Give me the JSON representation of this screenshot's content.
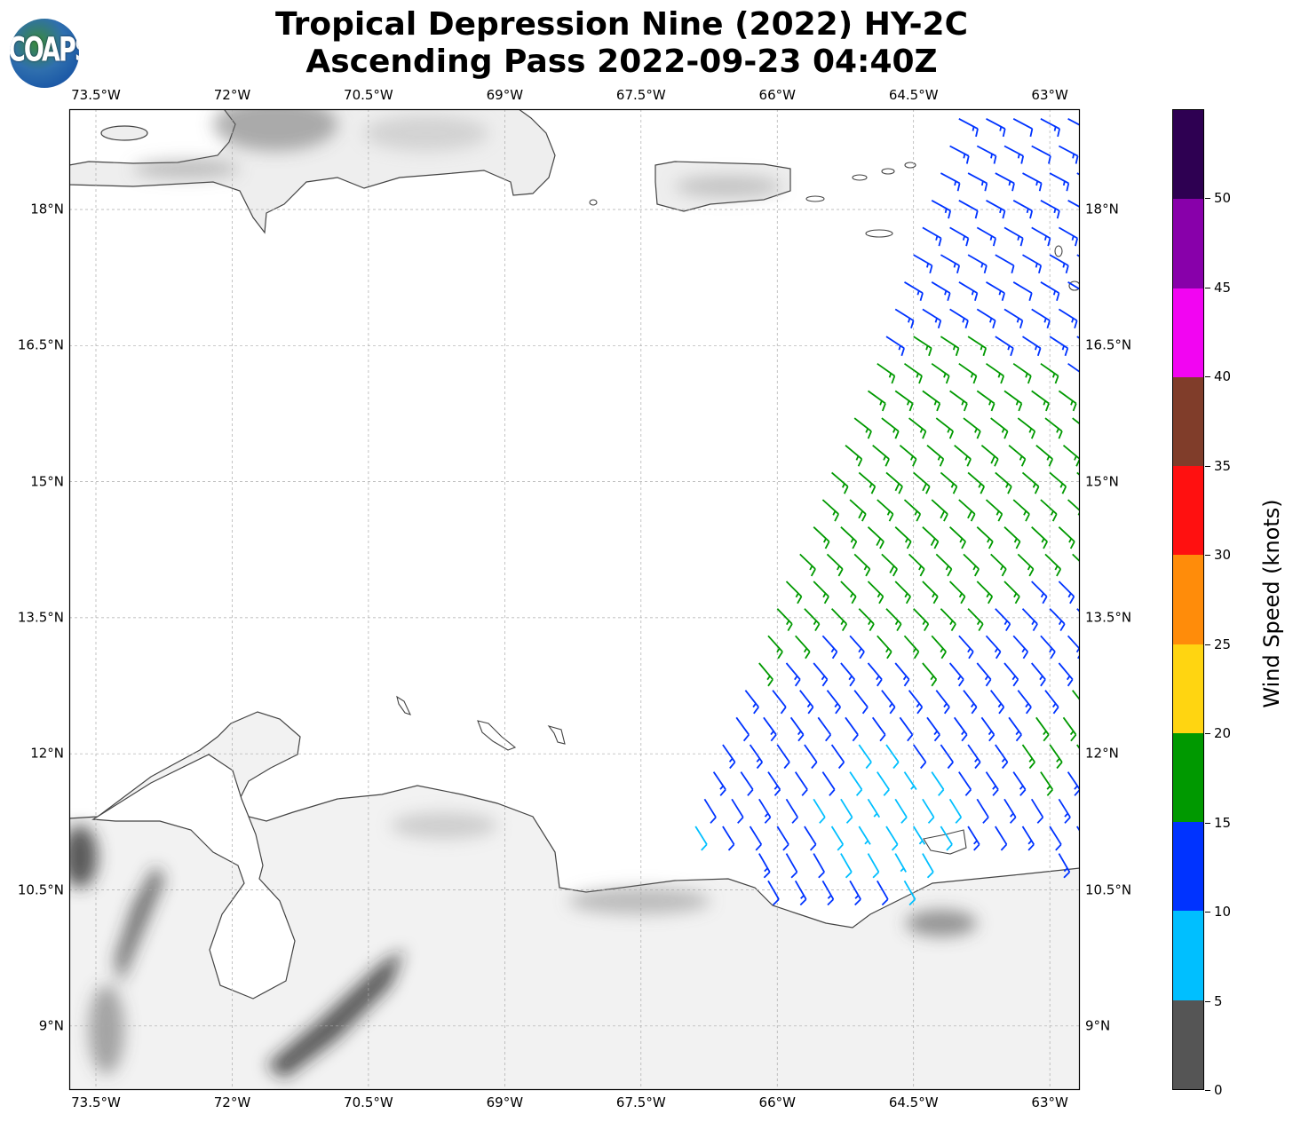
{
  "title": {
    "line1": "Tropical Depression Nine (2022) HY-2C",
    "line2": "Ascending Pass 2022-09-23 04:40Z"
  },
  "logo": {
    "text": "COAPS"
  },
  "map": {
    "extent_lon": [
      -73.79,
      -62.53
    ],
    "extent_lat": [
      8.28,
      19.1
    ],
    "lon_ticks": [
      {
        "value": -73.5,
        "label": "73.5°W"
      },
      {
        "value": -72,
        "label": "72°W"
      },
      {
        "value": -70.5,
        "label": "70.5°W"
      },
      {
        "value": -69,
        "label": "69°W"
      },
      {
        "value": -67.5,
        "label": "67.5°W"
      },
      {
        "value": -66,
        "label": "66°W"
      },
      {
        "value": -64.5,
        "label": "64.5°W"
      },
      {
        "value": -63,
        "label": "63°W"
      }
    ],
    "lat_ticks": [
      {
        "value": 18,
        "label": "18°N"
      },
      {
        "value": 16.5,
        "label": "16.5°N"
      },
      {
        "value": 15,
        "label": "15°N"
      },
      {
        "value": 13.5,
        "label": "13.5°N"
      },
      {
        "value": 12,
        "label": "12°N"
      },
      {
        "value": 10.5,
        "label": "10.5°N"
      },
      {
        "value": 9,
        "label": "9°N"
      }
    ]
  },
  "colorbar": {
    "label": "Wind Speed (knots)",
    "bins": [
      {
        "min": 0,
        "max": 5,
        "color": "#555555"
      },
      {
        "min": 5,
        "max": 10,
        "color": "#00bfff"
      },
      {
        "min": 10,
        "max": 15,
        "color": "#0033ff"
      },
      {
        "min": 15,
        "max": 20,
        "color": "#009900"
      },
      {
        "min": 20,
        "max": 25,
        "color": "#ffd511"
      },
      {
        "min": 25,
        "max": 30,
        "color": "#ff8c0a"
      },
      {
        "min": 30,
        "max": 35,
        "color": "#ff1010"
      },
      {
        "min": 35,
        "max": 40,
        "color": "#803d2a"
      },
      {
        "min": 40,
        "max": 45,
        "color": "#f205f2"
      },
      {
        "min": 45,
        "max": 50,
        "color": "#8800aa"
      },
      {
        "min": 50,
        "max": 55,
        "color": "#2e0052"
      }
    ],
    "tick_labels": [
      "0",
      "5",
      "10",
      "15",
      "20",
      "25",
      "30",
      "35",
      "40",
      "45",
      "50"
    ]
  },
  "wind_barbs": {
    "lon_step_deg": 0.3,
    "rows": [
      {
        "lat": 10.6,
        "lon_start": -66.1,
        "dir_from": 150,
        "speeds": [
          12,
          13,
          14,
          13,
          11,
          9
        ]
      },
      {
        "lat": 10.9,
        "lon_start": -66.2,
        "dir_from": 150,
        "speeds": [
          13,
          12,
          11,
          9,
          8,
          7,
          8,
          null,
          null,
          null,
          null,
          13,
          12,
          12
        ]
      },
      {
        "lat": 11.2,
        "lon_start": -66.9,
        "dir_from": 148,
        "speeds": [
          8,
          11,
          12,
          12,
          10,
          8,
          7,
          8,
          7,
          9,
          13,
          12,
          13,
          12,
          13
        ]
      },
      {
        "lat": 11.5,
        "lon_start": -66.8,
        "dir_from": 148,
        "speeds": [
          12,
          12,
          13,
          11,
          9,
          8,
          7,
          8,
          8,
          9,
          12,
          13,
          12,
          13,
          12
        ]
      },
      {
        "lat": 11.8,
        "lon_start": -66.7,
        "dir_from": 146,
        "speeds": [
          13,
          12,
          13,
          12,
          10,
          9,
          8,
          7,
          9,
          11,
          13,
          14,
          16,
          13,
          12
        ]
      },
      {
        "lat": 12.1,
        "lon_start": -66.6,
        "dir_from": 145,
        "speeds": [
          13,
          13,
          12,
          12,
          11,
          9,
          9,
          10,
          12,
          13,
          14,
          16,
          17,
          16
        ]
      },
      {
        "lat": 12.4,
        "lon_start": -66.45,
        "dir_from": 144,
        "speeds": [
          12,
          13,
          13,
          12,
          12,
          11,
          12,
          13,
          13,
          14,
          13,
          16,
          17,
          16
        ]
      },
      {
        "lat": 12.7,
        "lon_start": -66.35,
        "dir_from": 142,
        "speeds": [
          13,
          12,
          13,
          13,
          12,
          13,
          13,
          14,
          13,
          13,
          14,
          14,
          16,
          17
        ]
      },
      {
        "lat": 13.0,
        "lon_start": -66.2,
        "dir_from": 140,
        "speeds": [
          15,
          13,
          13,
          14,
          13,
          13,
          16,
          14,
          13,
          13,
          14,
          14,
          16,
          16
        ]
      },
      {
        "lat": 13.3,
        "lon_start": -66.1,
        "dir_from": 138,
        "speeds": [
          16,
          16,
          14,
          14,
          16,
          16,
          16,
          14,
          13,
          14,
          13,
          14,
          16,
          16
        ]
      },
      {
        "lat": 13.6,
        "lon_start": -66.0,
        "dir_from": 136,
        "speeds": [
          16,
          16,
          17,
          17,
          16,
          17,
          16,
          16,
          14,
          14,
          13,
          14,
          16
        ]
      },
      {
        "lat": 13.9,
        "lon_start": -65.9,
        "dir_from": 135,
        "speeds": [
          17,
          16,
          17,
          17,
          17,
          16,
          17,
          16,
          16,
          14,
          14,
          16,
          16
        ]
      },
      {
        "lat": 14.2,
        "lon_start": -65.75,
        "dir_from": 134,
        "speeds": [
          17,
          17,
          17,
          18,
          17,
          17,
          17,
          16,
          16,
          16,
          17,
          16,
          14
        ]
      },
      {
        "lat": 14.5,
        "lon_start": -65.6,
        "dir_from": 133,
        "speeds": [
          17,
          17,
          18,
          17,
          18,
          17,
          17,
          17,
          17,
          16,
          16,
          14
        ]
      },
      {
        "lat": 14.8,
        "lon_start": -65.5,
        "dir_from": 132,
        "speeds": [
          17,
          18,
          17,
          17,
          18,
          18,
          17,
          17,
          16,
          16,
          16,
          14
        ]
      },
      {
        "lat": 15.1,
        "lon_start": -65.4,
        "dir_from": 131,
        "speeds": [
          17,
          17,
          18,
          18,
          17,
          17,
          17,
          17,
          16,
          16,
          14,
          14
        ]
      },
      {
        "lat": 15.4,
        "lon_start": -65.25,
        "dir_from": 130,
        "speeds": [
          16,
          17,
          17,
          17,
          17,
          18,
          17,
          16,
          16,
          14,
          14
        ]
      },
      {
        "lat": 15.7,
        "lon_start": -65.15,
        "dir_from": 128,
        "speeds": [
          16,
          17,
          17,
          17,
          17,
          17,
          16,
          16,
          16,
          14,
          13
        ]
      },
      {
        "lat": 16.0,
        "lon_start": -65.0,
        "dir_from": 126,
        "speeds": [
          16,
          16,
          17,
          17,
          17,
          16,
          16,
          16,
          14,
          13,
          13
        ]
      },
      {
        "lat": 16.3,
        "lon_start": -64.9,
        "dir_from": 125,
        "speeds": [
          16,
          16,
          16,
          16,
          16,
          16,
          16,
          14,
          13,
          13
        ]
      },
      {
        "lat": 16.6,
        "lon_start": -64.8,
        "dir_from": 123,
        "speeds": [
          14,
          16,
          16,
          16,
          14,
          14,
          14,
          13,
          13,
          13
        ]
      },
      {
        "lat": 16.9,
        "lon_start": -64.7,
        "dir_from": 122,
        "speeds": [
          13,
          13,
          14,
          13,
          13,
          13,
          13,
          12,
          13,
          13
        ]
      },
      {
        "lat": 17.2,
        "lon_start": -64.6,
        "dir_from": 121,
        "speeds": [
          13,
          13,
          13,
          13,
          12,
          13,
          13,
          13,
          13
        ]
      },
      {
        "lat": 17.5,
        "lon_start": -64.5,
        "dir_from": 120,
        "speeds": [
          13,
          13,
          13,
          12,
          13,
          13,
          13,
          16,
          16
        ]
      },
      {
        "lat": 17.8,
        "lon_start": -64.4,
        "dir_from": 120,
        "speeds": [
          13,
          13,
          13,
          13,
          13,
          13,
          13,
          16,
          16
        ]
      },
      {
        "lat": 18.1,
        "lon_start": -64.3,
        "dir_from": 119,
        "speeds": [
          13,
          12,
          13,
          13,
          13,
          13,
          13,
          14,
          16
        ]
      },
      {
        "lat": 18.4,
        "lon_start": -64.2,
        "dir_from": 118,
        "speeds": [
          13,
          13,
          13,
          13,
          13,
          13,
          16,
          16
        ]
      },
      {
        "lat": 18.7,
        "lon_start": -64.1,
        "dir_from": 118,
        "speeds": [
          13,
          13,
          13,
          12,
          13,
          13,
          13,
          16
        ]
      },
      {
        "lat": 19.0,
        "lon_start": -64.0,
        "dir_from": 118,
        "speeds": [
          13,
          13,
          12,
          13,
          13,
          16,
          13
        ]
      }
    ]
  }
}
